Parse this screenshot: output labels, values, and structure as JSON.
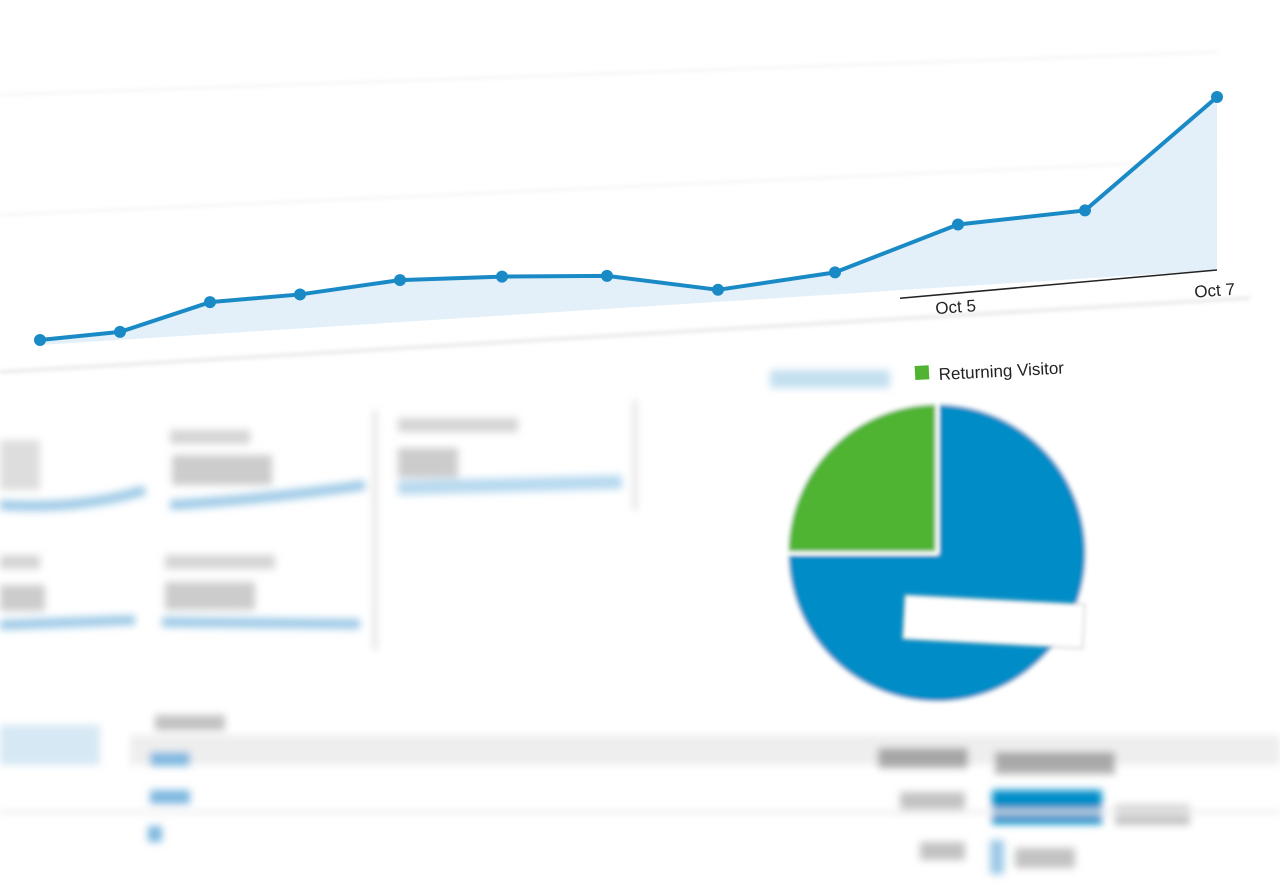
{
  "chart_data": [
    {
      "type": "line",
      "categories": [
        null,
        null,
        null,
        null,
        null,
        null,
        null,
        null,
        null,
        "Oct 5",
        null,
        "Oct 7"
      ],
      "values": [
        2.5,
        4,
        16,
        17,
        21,
        19.5,
        16.5,
        6,
        11,
        31,
        34,
        86.5
      ],
      "color": "#1a8ac6"
    },
    {
      "type": "pie",
      "categories": [
        null,
        "Returning Visitor"
      ],
      "values": [
        75,
        25
      ],
      "colors": [
        "#058dc7",
        "#50b432"
      ]
    }
  ]
}
